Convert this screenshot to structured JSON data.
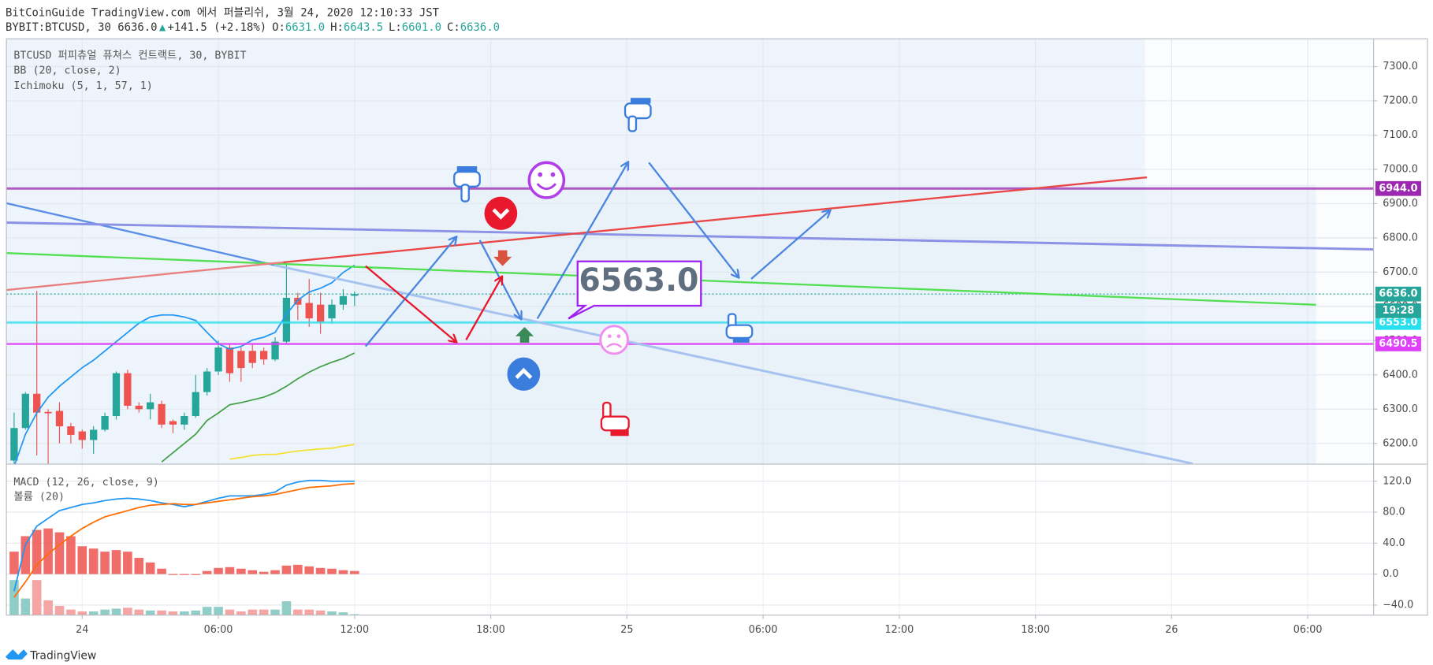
{
  "header": {
    "title": "BitCoinGuide TradingView.com 에서 퍼블리쉬, 3월 24, 2020 12:10:33 JST",
    "symbol": "BYBIT:BTCUSD, 30 6636.0",
    "arrow": "▲",
    "change": "+141.5 (+2.18%)",
    "ohlc": [
      {
        "key": "O:",
        "value": "6631.0"
      },
      {
        "key": "H:",
        "value": "6643.5"
      },
      {
        "key": "L:",
        "value": "6601.0"
      },
      {
        "key": "C:",
        "value": "6636.0"
      }
    ]
  },
  "footer": {
    "brand": "TradingView"
  },
  "chart_data": [
    {
      "type": "candlestick",
      "legend": [
        "BTCUSD 퍼피츄얼 퓨쳐스 컨트랙트, 30, BYBIT",
        "BB (20, close, 2)",
        "Ichimoku (5, 1, 57, 1)"
      ],
      "up_color": "#26a69a",
      "down_color": "#ef5350",
      "open": [
        6150,
        6245,
        6345,
        6292,
        6295,
        6250,
        6235,
        6210,
        6240,
        6280,
        6405,
        6310,
        6300,
        6315,
        6265,
        6255,
        6280,
        6350,
        6410,
        6480,
        6470,
        6470,
        6470,
        6445,
        6497,
        6625,
        6610,
        6605,
        6565,
        6605,
        6631
      ],
      "high": [
        6290,
        6350,
        6645,
        6300,
        6320,
        6260,
        6240,
        6250,
        6290,
        6410,
        6415,
        6320,
        6345,
        6325,
        6270,
        6290,
        6400,
        6420,
        6500,
        6490,
        6480,
        6490,
        6480,
        6510,
        6725,
        6640,
        6680,
        6640,
        6620,
        6650,
        6643.5
      ],
      "low": [
        6140,
        6240,
        6165,
        6140,
        6200,
        6200,
        6185,
        6170,
        6235,
        6270,
        6300,
        6290,
        6270,
        6245,
        6230,
        6240,
        6275,
        6340,
        6400,
        6380,
        6380,
        6420,
        6430,
        6440,
        6490,
        6560,
        6540,
        6520,
        6550,
        6590,
        6601
      ],
      "close": [
        6245,
        6345,
        6290,
        6288,
        6250,
        6225,
        6210,
        6240,
        6280,
        6405,
        6310,
        6300,
        6320,
        6255,
        6255,
        6280,
        6350,
        6410,
        6480,
        6405,
        6420,
        6435,
        6445,
        6497,
        6625,
        6605,
        6565,
        6555,
        6605,
        6630,
        6636
      ],
      "series": [
        {
          "color": "#2196f3",
          "values": [
            6133,
            6227,
            6289,
            6335,
            6367,
            6394,
            6421,
            6443,
            6470,
            6497,
            6524,
            6551,
            6569,
            6575,
            6575,
            6569,
            6559,
            6524,
            6491,
            6475,
            6483,
            6502,
            6510,
            6524,
            6577,
            6618,
            6642,
            6653,
            6669,
            6699,
            6720
          ]
        },
        {
          "color": "#43a047",
          "values": [
            null,
            null,
            null,
            null,
            null,
            null,
            null,
            null,
            null,
            null,
            null,
            null,
            null,
            6146,
            6173,
            6200,
            6227,
            6267,
            6289,
            6313,
            6319,
            6327,
            6335,
            6348,
            6367,
            6389,
            6408,
            6424,
            6437,
            6448,
            6464
          ]
        },
        {
          "color": "#f5e132",
          "values": [
            null,
            null,
            null,
            null,
            null,
            null,
            null,
            null,
            null,
            null,
            null,
            null,
            null,
            null,
            null,
            null,
            null,
            null,
            null,
            6154,
            6159,
            6165,
            6168,
            6168,
            6173,
            6178,
            6181,
            6184,
            6186,
            6192,
            6197
          ]
        }
      ],
      "hlines": [
        {
          "value": 6944,
          "label": "6944.0",
          "color": "#9c27b0"
        },
        {
          "value": 6553,
          "label": "6553.0",
          "color": "#26e0f0"
        },
        {
          "value": 6490.5,
          "label": "6490.5",
          "color": "#e040fb"
        }
      ],
      "last_price": {
        "value": 6636,
        "label": "6636.0",
        "countdown": "19:28",
        "color": "#26a69a"
      },
      "callout": "6563.0",
      "xlim": [
        -0.68,
        119.8
      ],
      "xticks": [
        {
          "value": 6,
          "label": "24"
        },
        {
          "value": 18,
          "label": "06:00"
        },
        {
          "value": 30,
          "label": "12:00"
        },
        {
          "value": 42,
          "label": "18:00"
        },
        {
          "value": 54,
          "label": "25"
        },
        {
          "value": 66,
          "label": "06:00"
        },
        {
          "value": 78,
          "label": "12:00"
        },
        {
          "value": 90,
          "label": "18:00"
        },
        {
          "value": 102,
          "label": "26"
        },
        {
          "value": 114,
          "label": "06:00"
        }
      ],
      "ylim": [
        6141,
        7381
      ],
      "yticks": [
        {
          "value": 7300,
          "label": "7300.0"
        },
        {
          "value": 7200,
          "label": "7200.0"
        },
        {
          "value": 7100,
          "label": "7100.0"
        },
        {
          "value": 7000,
          "label": "7000.0"
        },
        {
          "value": 6900,
          "label": "6900.0"
        },
        {
          "value": 6800,
          "label": "6800.0"
        },
        {
          "value": 6700,
          "label": "6700.0"
        },
        {
          "value": 6600,
          "label": "6600.0"
        },
        {
          "value": 6500,
          "label": "6500.0"
        },
        {
          "value": 6400,
          "label": "6400.0"
        },
        {
          "value": 6300,
          "label": "6300.0"
        },
        {
          "value": 6200,
          "label": "6200.0"
        }
      ],
      "grid": true
    },
    {
      "type": "macd",
      "legend": [
        "MACD (12, 26, close, 9)",
        "볼륨 (20)"
      ],
      "series": [
        {
          "color": "#2196f3",
          "values": [
            -22,
            38,
            62,
            72,
            82,
            86,
            90,
            92,
            95,
            97,
            98,
            97,
            95,
            92,
            90,
            87,
            90,
            94,
            98,
            101,
            101,
            101,
            103,
            106,
            115,
            119,
            121,
            121,
            120,
            120,
            120
          ]
        },
        {
          "color": "#ff6d00",
          "values": [
            -30,
            -10,
            12,
            26,
            38,
            49,
            59,
            67,
            74,
            78,
            82,
            86,
            89,
            90,
            91,
            90,
            90,
            92,
            94,
            96,
            98,
            100,
            101,
            103,
            106,
            109,
            112,
            113,
            114,
            116,
            117
          ]
        }
      ],
      "histogram": {
        "color": "#ef5350",
        "values": [
          29,
          49,
          57,
          59,
          54,
          49,
          36,
          33,
          29,
          31,
          29,
          21,
          15,
          7,
          0,
          -1,
          0,
          4,
          8,
          9,
          7,
          5,
          3,
          5,
          11,
          12,
          10,
          8,
          7,
          5,
          4
        ]
      },
      "volume": {
        "up_color": "#8fcdc6",
        "down_color": "#f5a5a3",
        "values": [
          38,
          18,
          38,
          16,
          10,
          6,
          4,
          4,
          6,
          7,
          8,
          6,
          5,
          5,
          4,
          4,
          5,
          9,
          9,
          6,
          4,
          6,
          6,
          6,
          15,
          6,
          6,
          5,
          4,
          3,
          1
        ]
      },
      "ylim": [
        -53,
        141.5
      ],
      "yticks": [
        {
          "value": 120,
          "label": "120.0"
        },
        {
          "value": 80,
          "label": "80.0"
        },
        {
          "value": 40,
          "label": "40.0"
        },
        {
          "value": 0,
          "label": "0.0"
        },
        {
          "value": -40,
          "label": "−40.0"
        }
      ],
      "grid": true
    }
  ]
}
